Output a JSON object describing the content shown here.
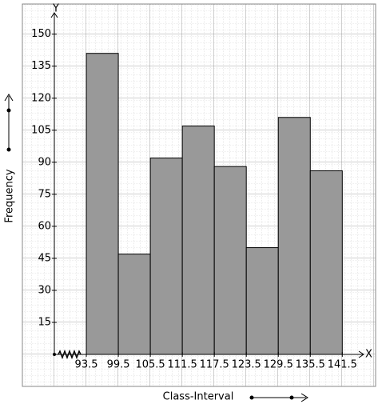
{
  "chart_data": {
    "type": "histogram",
    "x_label": "Class-Interval",
    "y_label": "Frequency",
    "x_axis_name": "X",
    "y_axis_name": "Y",
    "bins": [
      93.5,
      99.5,
      105.5,
      111.5,
      117.5,
      123.5,
      129.5,
      135.5,
      141.5
    ],
    "values": [
      141,
      47,
      92,
      107,
      88,
      50,
      111,
      86
    ],
    "color": "#999999",
    "xlim": [
      87.5,
      145.5
    ],
    "ylim": [
      0,
      160
    ],
    "xticks": [
      93.5,
      99.5,
      105.5,
      111.5,
      117.5,
      123.5,
      129.5,
      135.5,
      141.5
    ],
    "yticks": [
      15,
      30,
      45,
      60,
      75,
      90,
      105,
      120,
      135,
      150
    ]
  }
}
